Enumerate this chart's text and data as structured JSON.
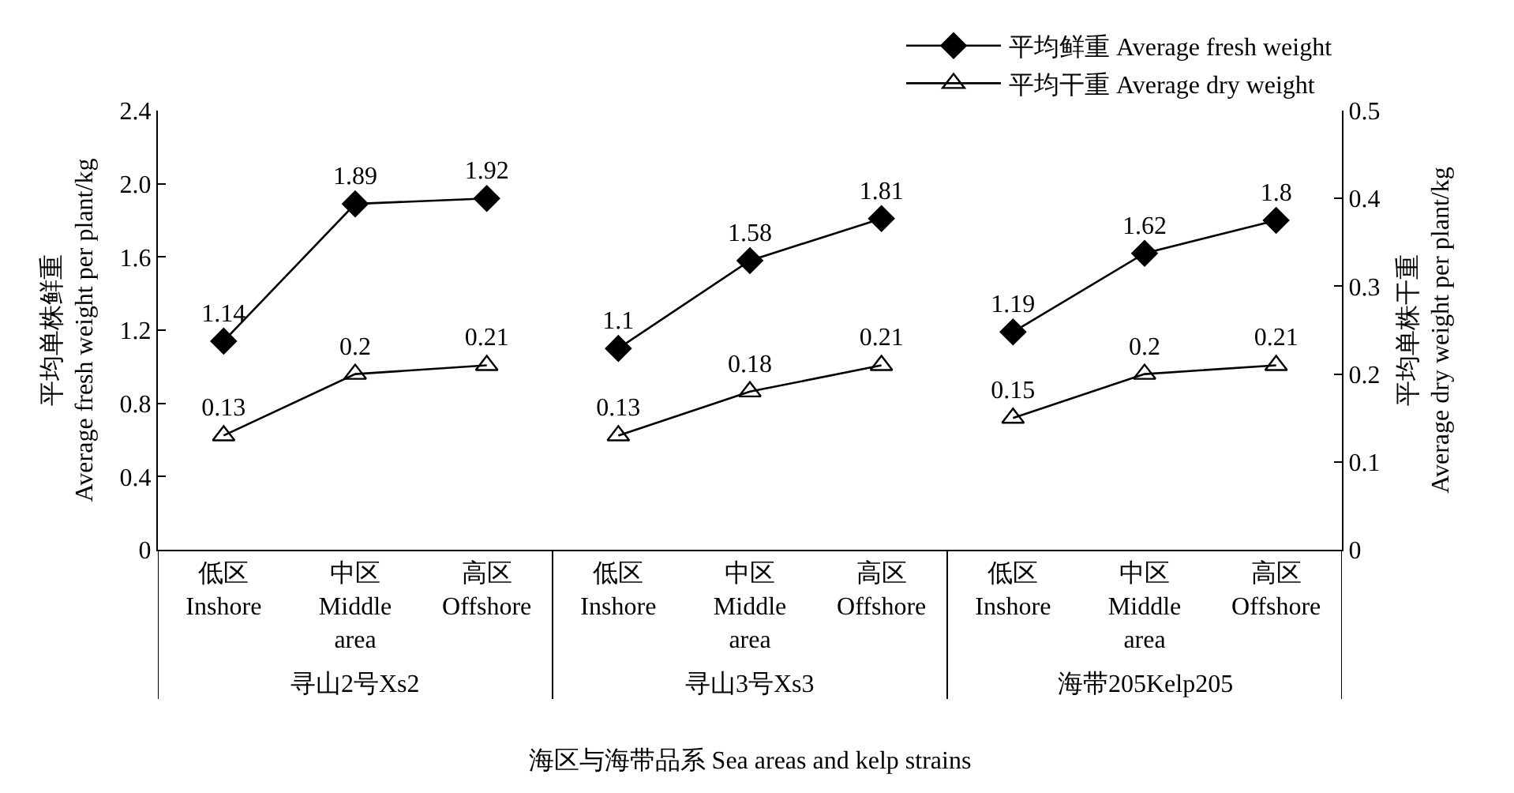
{
  "chart_data": {
    "type": "line",
    "categories": [
      "低区\nInshore",
      "中区\nMiddle\narea",
      "高区\nOffshore",
      "低区\nInshore",
      "中区\nMiddle\narea",
      "高区\nOffshore",
      "低区\nInshore",
      "中区\nMiddle\narea",
      "高区\nOffshore"
    ],
    "series": [
      {
        "name": "平均鲜重 Average fresh weight",
        "color": "#000000",
        "marker": "diamond",
        "axis": "y",
        "values": [
          1.14,
          1.89,
          1.92,
          null,
          null,
          null,
          null,
          null,
          null
        ]
      },
      {
        "color": "#000000",
        "marker": "diamond",
        "axis": "y",
        "values": [
          null,
          null,
          null,
          1.1,
          1.58,
          1.81,
          null,
          null,
          null
        ]
      },
      {
        "color": "#000000",
        "marker": "diamond",
        "axis": "y",
        "values": [
          null,
          null,
          null,
          null,
          null,
          null,
          1.19,
          1.62,
          1.8
        ]
      },
      {
        "name": "平均干重 Average dry weight",
        "color": "#000000",
        "marker": "triangle",
        "axis": "y2",
        "values": [
          0.13,
          0.2,
          0.21,
          null,
          null,
          null,
          null,
          null,
          null
        ]
      },
      {
        "color": "#000000",
        "marker": "triangle",
        "axis": "y2",
        "values": [
          null,
          null,
          null,
          0.13,
          0.18,
          0.21,
          null,
          null,
          null
        ]
      },
      {
        "color": "#000000",
        "marker": "triangle",
        "axis": "y2",
        "values": [
          null,
          null,
          null,
          null,
          null,
          null,
          0.15,
          0.2,
          0.21
        ]
      }
    ],
    "ylim": [
      0,
      2.4
    ],
    "yticks": [
      0,
      0.4,
      0.8,
      1.2,
      1.6,
      {
        "value": 2,
        "label": "2.0"
      },
      2.4
    ],
    "y2lim": [
      0,
      0.5
    ],
    "y2ticks": [
      0,
      0.1,
      0.2,
      0.3,
      0.4,
      0.5
    ],
    "ylabel": "平均单株鲜重\nAverage fresh weight per plant/kg",
    "y2label": "平均单株干重\nAverage dry weight per plant/kg",
    "xlabel": "海区与海带品系 Sea areas and kelp strains",
    "annotations": [
      "寻山2号Xs2",
      "寻山3号Xs3",
      "海带205Kelp205"
    ],
    "data_labels": true,
    "grid": false,
    "legend": "top right"
  }
}
